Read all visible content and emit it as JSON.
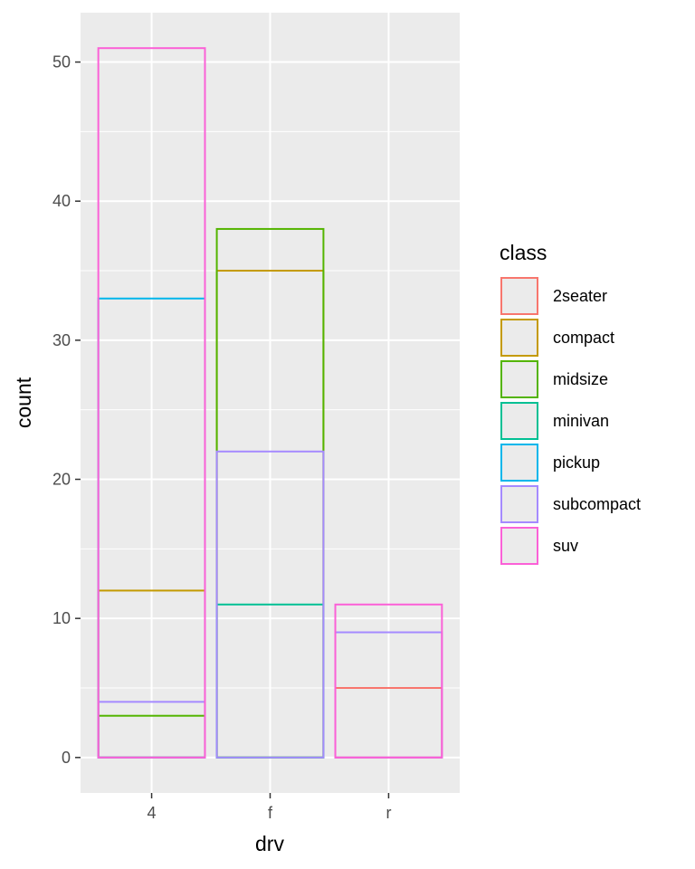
{
  "chart_data": {
    "type": "bar",
    "title": "",
    "xlabel": "drv",
    "ylabel": "count",
    "categories": [
      "4",
      "f",
      "r"
    ],
    "ylim": [
      -2.55,
      53.55
    ],
    "yticks": [
      0,
      10,
      20,
      30,
      40,
      50
    ],
    "grid": true,
    "position": "identity",
    "fill": "none",
    "legend": {
      "title": "class",
      "placement": "right"
    },
    "series": [
      {
        "name": "2seater",
        "color": "#F8766D",
        "values": [
          0,
          0,
          5
        ]
      },
      {
        "name": "compact",
        "color": "#C49A00",
        "values": [
          12,
          35,
          0
        ]
      },
      {
        "name": "midsize",
        "color": "#53B400",
        "values": [
          3,
          38,
          0
        ]
      },
      {
        "name": "minivan",
        "color": "#00C094",
        "values": [
          0,
          11,
          0
        ]
      },
      {
        "name": "pickup",
        "color": "#00B6EB",
        "values": [
          33,
          0,
          0
        ]
      },
      {
        "name": "subcompact",
        "color": "#A58AFF",
        "values": [
          4,
          22,
          9
        ]
      },
      {
        "name": "suv",
        "color": "#FB61D7",
        "values": [
          51,
          0,
          11
        ]
      }
    ]
  }
}
